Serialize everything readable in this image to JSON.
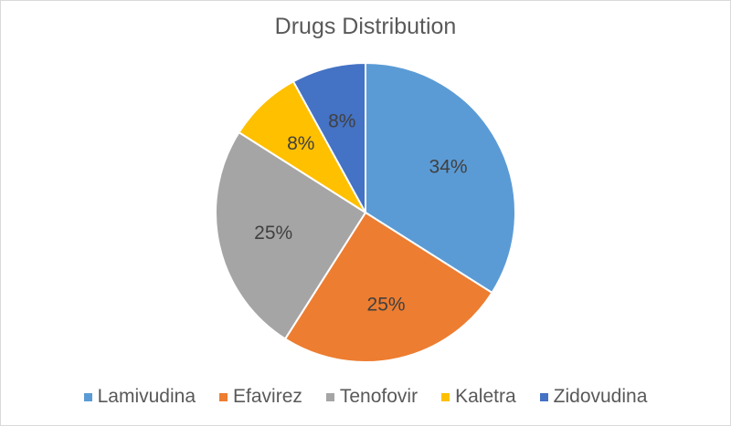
{
  "chart_data": {
    "type": "pie",
    "title": "Drugs Distribution",
    "categories": [
      "Lamivudina",
      "Efavirez",
      "Tenofovir",
      "Kaletra",
      "Zidovudina"
    ],
    "values": [
      34,
      25,
      25,
      8,
      8
    ],
    "data_labels": [
      "34%",
      "25%",
      "25%",
      "8%",
      "8%"
    ],
    "colors": [
      "#5b9bd5",
      "#ed7d31",
      "#a5a5a5",
      "#ffc000",
      "#4472c4"
    ],
    "legend": "bottom"
  }
}
